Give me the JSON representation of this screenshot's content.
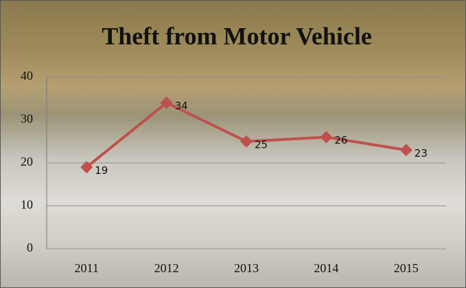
{
  "chart_data": {
    "type": "line",
    "title": "Theft from Motor Vehicle",
    "categories": [
      "2011",
      "2012",
      "2013",
      "2014",
      "2015"
    ],
    "values": [
      19,
      34,
      25,
      26,
      23
    ],
    "color": "#c0504d",
    "ylim": [
      0,
      40
    ],
    "yticks": [
      0,
      10,
      20,
      30,
      40
    ],
    "grid": true
  }
}
